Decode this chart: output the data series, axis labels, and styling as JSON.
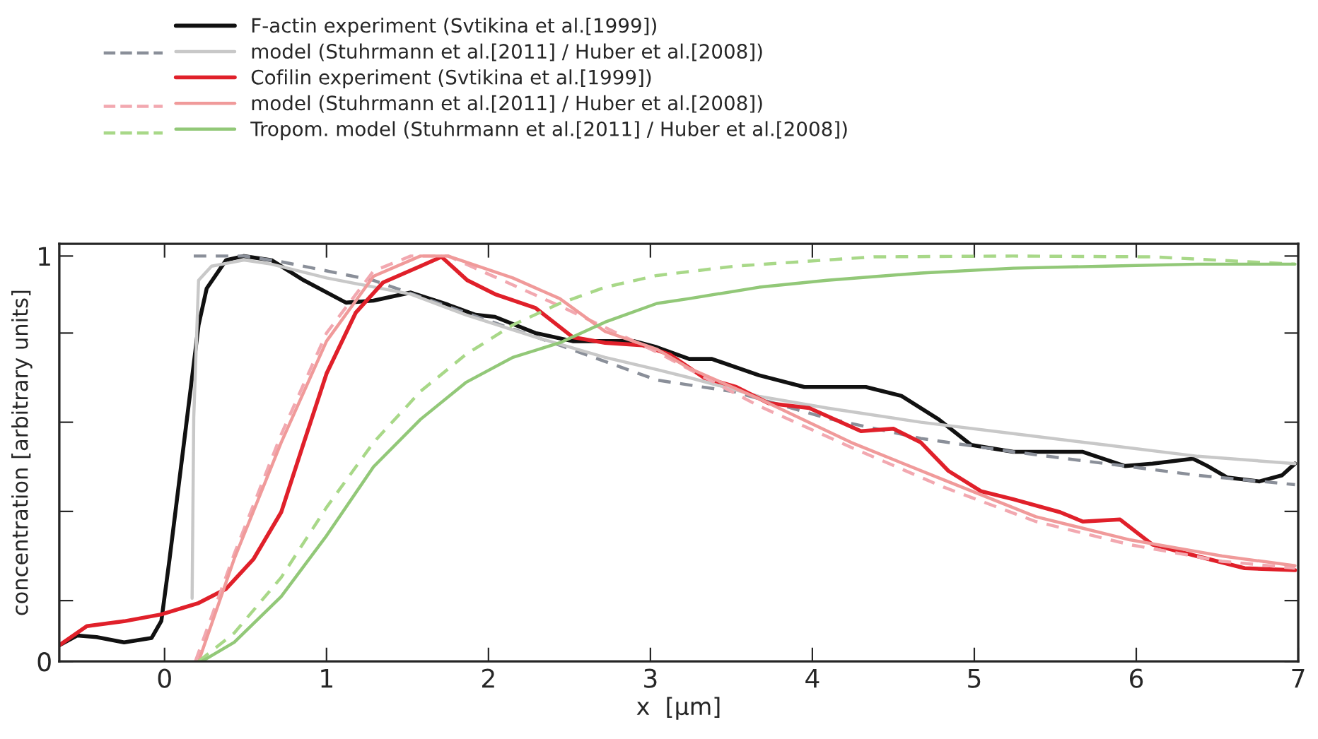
{
  "chart_data": {
    "type": "line",
    "xlabel": "x  [µm]",
    "ylabel": "concentration [arbitrary units]",
    "xlim": [
      -0.65,
      7
    ],
    "xticks": [
      0,
      1,
      2,
      3,
      4,
      5,
      6,
      7
    ],
    "ylim": [
      0,
      1.03
    ],
    "yticks": [
      0,
      {
        "value": 0.15,
        "label": null
      },
      {
        "value": 0.37,
        "label": null
      },
      {
        "value": 0.59,
        "label": null
      },
      {
        "value": 0.81,
        "label": null
      },
      1
    ],
    "grid": false,
    "legend": "top left",
    "marker": "none",
    "series": [
      {
        "name": "F-actin experiment (Svtikina et al.[1999])",
        "color": "#111111",
        "line_style": "solid",
        "x": [
          -0.65,
          -0.54,
          -0.42,
          -0.25,
          -0.08,
          -0.02,
          0.03,
          0.12,
          0.21,
          0.26,
          0.38,
          0.49,
          0.66,
          0.86,
          1.12,
          1.29,
          1.52,
          1.75,
          1.92,
          2.04,
          2.29,
          2.52,
          2.72,
          2.9,
          3.04,
          3.24,
          3.38,
          3.67,
          3.95,
          4.33,
          4.55,
          4.78,
          4.98,
          5.24,
          5.67,
          5.93,
          6.1,
          6.35,
          6.44,
          6.56,
          6.76,
          6.9,
          6.98
        ],
        "values": [
          0.04,
          0.064,
          0.06,
          0.047,
          0.058,
          0.1,
          0.25,
          0.54,
          0.83,
          0.92,
          0.99,
          1.0,
          0.99,
          0.94,
          0.885,
          0.89,
          0.91,
          0.88,
          0.855,
          0.85,
          0.81,
          0.79,
          0.79,
          0.79,
          0.775,
          0.746,
          0.746,
          0.706,
          0.677,
          0.677,
          0.655,
          0.597,
          0.534,
          0.517,
          0.517,
          0.482,
          0.488,
          0.5,
          0.482,
          0.454,
          0.444,
          0.459,
          0.488
        ]
      },
      {
        "color": "#8a8f99",
        "line_style": "dashed",
        "x": [
          0.18,
          0.49,
          0.72,
          1.29,
          1.86,
          2.44,
          3.04,
          3.52,
          4.09,
          4.67,
          5.24,
          5.81,
          6.38,
          6.98
        ],
        "values": [
          1.0,
          1.0,
          0.986,
          0.94,
          0.86,
          0.78,
          0.694,
          0.665,
          0.6,
          0.55,
          0.517,
          0.488,
          0.459,
          0.436
        ]
      },
      {
        "name": "model (Stuhrmann et al.[2011] / Huber et al.[2008])",
        "color": "#c8c8c8",
        "line_style": "solid",
        "x": [
          0.17,
          0.18,
          0.21,
          0.29,
          0.49,
          0.66,
          1.0,
          1.52,
          1.86,
          2.29,
          2.72,
          3.04,
          3.24,
          3.67,
          4.09,
          4.67,
          5.24,
          5.81,
          6.38,
          6.98
        ],
        "values": [
          0.156,
          0.6,
          0.94,
          0.975,
          0.99,
          0.98,
          0.946,
          0.906,
          0.855,
          0.8,
          0.75,
          0.72,
          0.7,
          0.654,
          0.625,
          0.59,
          0.562,
          0.534,
          0.506,
          0.488
        ]
      },
      {
        "name": "Cofilin experiment (Svtikina et al.[1999])",
        "color": "#e0202a",
        "line_style": "solid",
        "x": [
          -0.65,
          -0.48,
          -0.25,
          -0.02,
          0.21,
          0.38,
          0.55,
          0.72,
          0.86,
          1.0,
          1.18,
          1.35,
          1.58,
          1.71,
          1.87,
          2.04,
          2.29,
          2.52,
          2.72,
          2.95,
          3.12,
          3.33,
          3.53,
          3.73,
          3.98,
          4.3,
          4.5,
          4.67,
          4.84,
          5.04,
          5.24,
          5.53,
          5.67,
          5.9,
          6.1,
          6.38,
          6.67,
          6.98
        ],
        "values": [
          0.04,
          0.087,
          0.099,
          0.116,
          0.144,
          0.179,
          0.253,
          0.368,
          0.54,
          0.71,
          0.86,
          0.935,
          0.975,
          0.998,
          0.94,
          0.906,
          0.872,
          0.8,
          0.786,
          0.78,
          0.757,
          0.7,
          0.677,
          0.637,
          0.625,
          0.568,
          0.574,
          0.54,
          0.47,
          0.42,
          0.4,
          0.368,
          0.345,
          0.35,
          0.288,
          0.259,
          0.23,
          0.225
        ]
      },
      {
        "color": "#f2a8b0",
        "line_style": "dashed",
        "x": [
          0.19,
          0.43,
          0.72,
          1.0,
          1.29,
          1.52,
          1.75,
          2.44,
          3.04,
          3.67,
          4.24,
          4.81,
          5.38,
          5.96,
          6.53,
          6.98
        ],
        "values": [
          0.0,
          0.265,
          0.56,
          0.81,
          0.963,
          1.0,
          1.0,
          0.877,
          0.763,
          0.63,
          0.528,
          0.43,
          0.345,
          0.288,
          0.247,
          0.23
        ]
      },
      {
        "name": "model (Stuhrmann et al.[2011] / Huber et al.[2008])",
        "color": "#f09a9a",
        "line_style": "solid",
        "x": [
          0.21,
          0.43,
          0.72,
          1.0,
          1.29,
          1.58,
          1.75,
          2.15,
          2.44,
          2.72,
          3.04,
          3.24,
          3.67,
          4.24,
          4.81,
          5.38,
          5.96,
          6.53,
          6.98
        ],
        "values": [
          0.0,
          0.253,
          0.54,
          0.79,
          0.95,
          1.0,
          1.0,
          0.946,
          0.895,
          0.814,
          0.77,
          0.723,
          0.648,
          0.54,
          0.448,
          0.357,
          0.3,
          0.26,
          0.236
        ]
      },
      {
        "color": "#a8d888",
        "line_style": "dashed",
        "x": [
          0.21,
          0.43,
          0.72,
          1.0,
          1.29,
          1.58,
          1.86,
          2.15,
          2.44,
          2.72,
          3.04,
          3.52,
          4.38,
          5.24,
          6.1,
          6.98
        ],
        "values": [
          0.0,
          0.07,
          0.207,
          0.38,
          0.54,
          0.666,
          0.757,
          0.83,
          0.883,
          0.923,
          0.952,
          0.975,
          0.998,
          1.0,
          0.998,
          0.98
        ]
      },
      {
        "name": "Tropom. model (Stuhrmann et al.[2011] / Huber et al.[2008])",
        "color": "#92c878",
        "line_style": "solid",
        "x": [
          0.23,
          0.43,
          0.72,
          1.0,
          1.29,
          1.58,
          1.86,
          2.15,
          2.44,
          2.72,
          3.04,
          3.24,
          3.67,
          4.09,
          4.67,
          5.24,
          5.81,
          6.38,
          6.98
        ],
        "values": [
          0.0,
          0.047,
          0.16,
          0.31,
          0.48,
          0.597,
          0.688,
          0.75,
          0.786,
          0.837,
          0.883,
          0.895,
          0.923,
          0.94,
          0.958,
          0.97,
          0.975,
          0.98,
          0.98
        ]
      }
    ]
  }
}
